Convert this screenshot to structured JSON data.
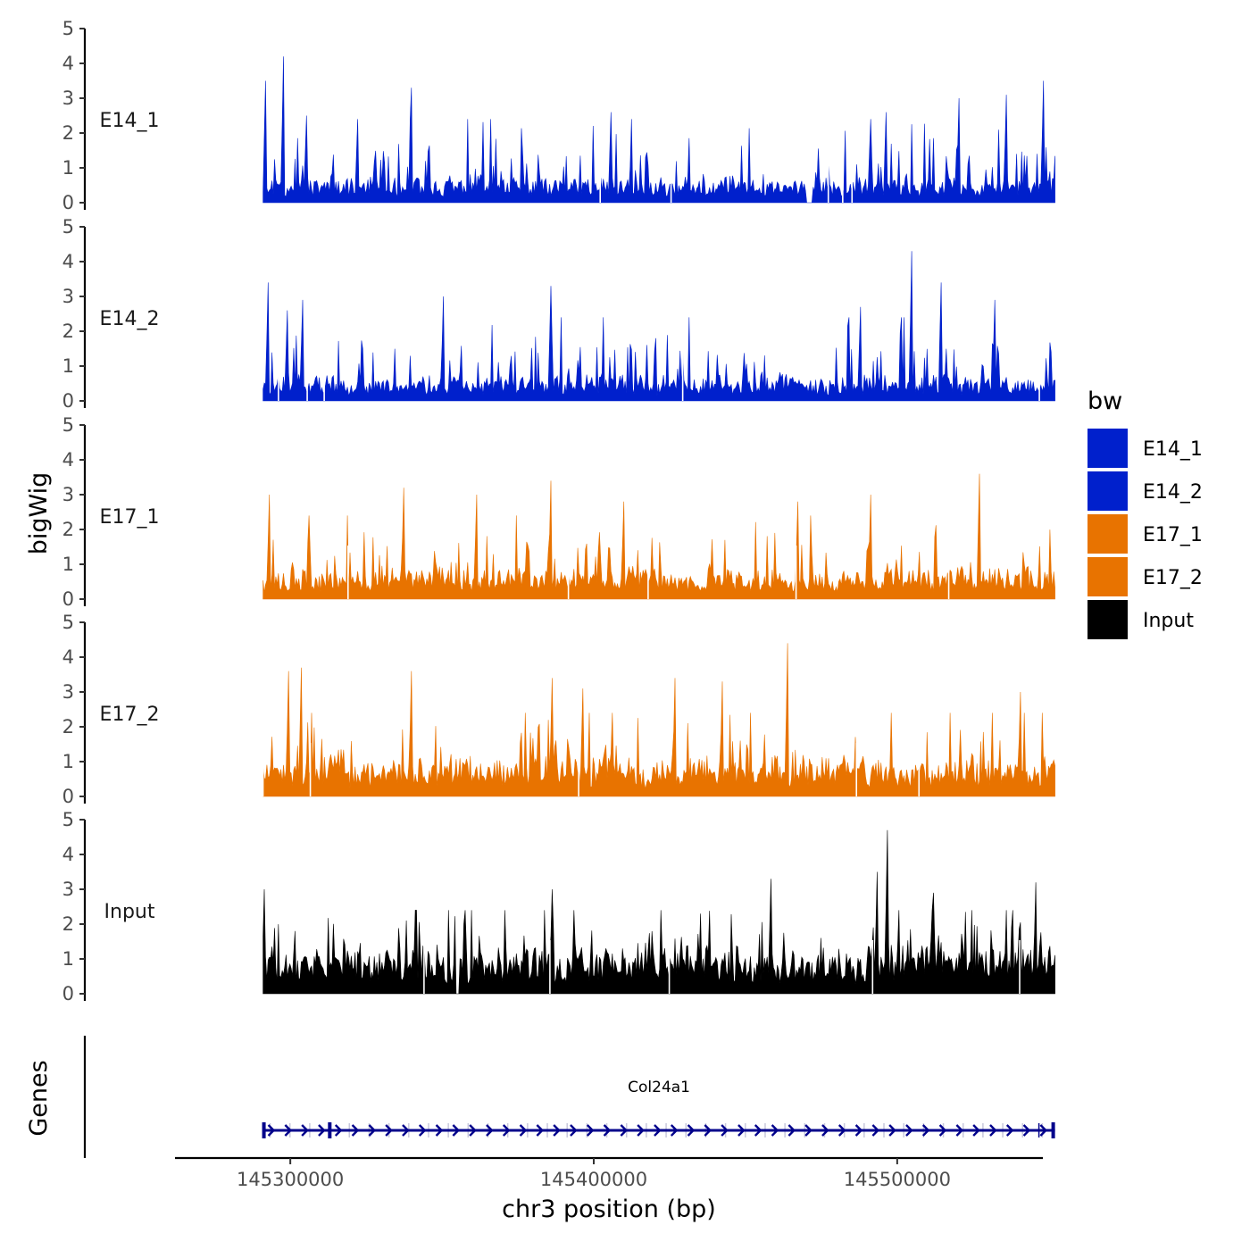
{
  "chart_data": {
    "type": "area",
    "title": "",
    "ylabel": "bigWig",
    "xlabel": "chr3 position (bp)",
    "chromosome": "chr3",
    "xlim": [
      145262000,
      145548000
    ],
    "data_range": [
      145291000,
      145552000
    ],
    "x_ticks": [
      145300000,
      145400000,
      145500000
    ],
    "x_tick_labels": [
      "145300000",
      "145400000",
      "145500000"
    ],
    "ylim": [
      0,
      5
    ],
    "y_ticks": [
      0,
      1,
      2,
      3,
      4,
      5
    ],
    "y_tick_labels": [
      "0",
      "1",
      "2",
      "3",
      "4",
      "5"
    ],
    "series": [
      {
        "name": "E14_1",
        "color": "#0020CC",
        "seed": 11,
        "base": 0.55,
        "gaps": [
          0.686,
          0.693
        ],
        "peaks": [
          [
            0.026,
            4.2
          ],
          [
            0.004,
            3.5
          ],
          [
            0.187,
            3.3
          ],
          [
            0.985,
            3.5
          ],
          [
            0.939,
            3.1
          ],
          [
            0.879,
            3.0
          ],
          [
            0.786,
            2.6
          ],
          [
            0.44,
            2.6
          ],
          [
            0.055,
            2.5
          ]
        ]
      },
      {
        "name": "E14_2",
        "color": "#0020CC",
        "seed": 23,
        "base": 0.55,
        "gaps": [],
        "peaks": [
          [
            0.819,
            4.3
          ],
          [
            0.007,
            3.4
          ],
          [
            0.364,
            3.3
          ],
          [
            0.857,
            3.4
          ],
          [
            0.228,
            3.0
          ],
          [
            0.924,
            2.9
          ],
          [
            0.031,
            2.6
          ],
          [
            0.05,
            2.9
          ],
          [
            0.755,
            2.7
          ]
        ]
      },
      {
        "name": "E17_1",
        "color": "#E87300",
        "seed": 37,
        "base": 0.65,
        "gaps": [],
        "peaks": [
          [
            0.904,
            3.6
          ],
          [
            0.363,
            3.4
          ],
          [
            0.178,
            3.2
          ],
          [
            0.008,
            3.0
          ],
          [
            0.27,
            3.0
          ],
          [
            0.767,
            3.0
          ],
          [
            0.676,
            2.8
          ],
          [
            0.455,
            2.8
          ]
        ]
      },
      {
        "name": "E17_2",
        "color": "#E87300",
        "seed": 51,
        "base": 0.8,
        "gaps": [],
        "peaks": [
          [
            0.663,
            4.4
          ],
          [
            0.049,
            3.7
          ],
          [
            0.187,
            3.6
          ],
          [
            0.032,
            3.6
          ],
          [
            0.365,
            3.4
          ],
          [
            0.957,
            3.0
          ],
          [
            0.404,
            3.1
          ],
          [
            0.521,
            3.4
          ],
          [
            0.58,
            3.3
          ]
        ]
      },
      {
        "name": "Input",
        "color": "#000000",
        "seed": 71,
        "base": 1.0,
        "gaps": [
          0.244,
          0.247
        ],
        "peaks": [
          [
            0.789,
            4.7
          ],
          [
            0.775,
            3.5
          ],
          [
            0.641,
            3.3
          ],
          [
            0.001,
            3.0
          ],
          [
            0.365,
            3.0
          ],
          [
            0.846,
            2.9
          ],
          [
            0.976,
            3.2
          ]
        ]
      }
    ],
    "legend": {
      "title": "bw",
      "position": "right",
      "entries": [
        {
          "label": "E14_1",
          "color": "#0020CC"
        },
        {
          "label": "E14_2",
          "color": "#0020CC"
        },
        {
          "label": "E17_1",
          "color": "#E87300"
        },
        {
          "label": "E17_2",
          "color": "#E87300"
        },
        {
          "label": "Input",
          "color": "#000000"
        }
      ]
    },
    "gene_track": {
      "label": "Genes",
      "color": "#00008B",
      "genes": [
        {
          "name": "Col24a1",
          "start": 145291000,
          "end": 145552000,
          "strand": "+"
        }
      ]
    }
  }
}
